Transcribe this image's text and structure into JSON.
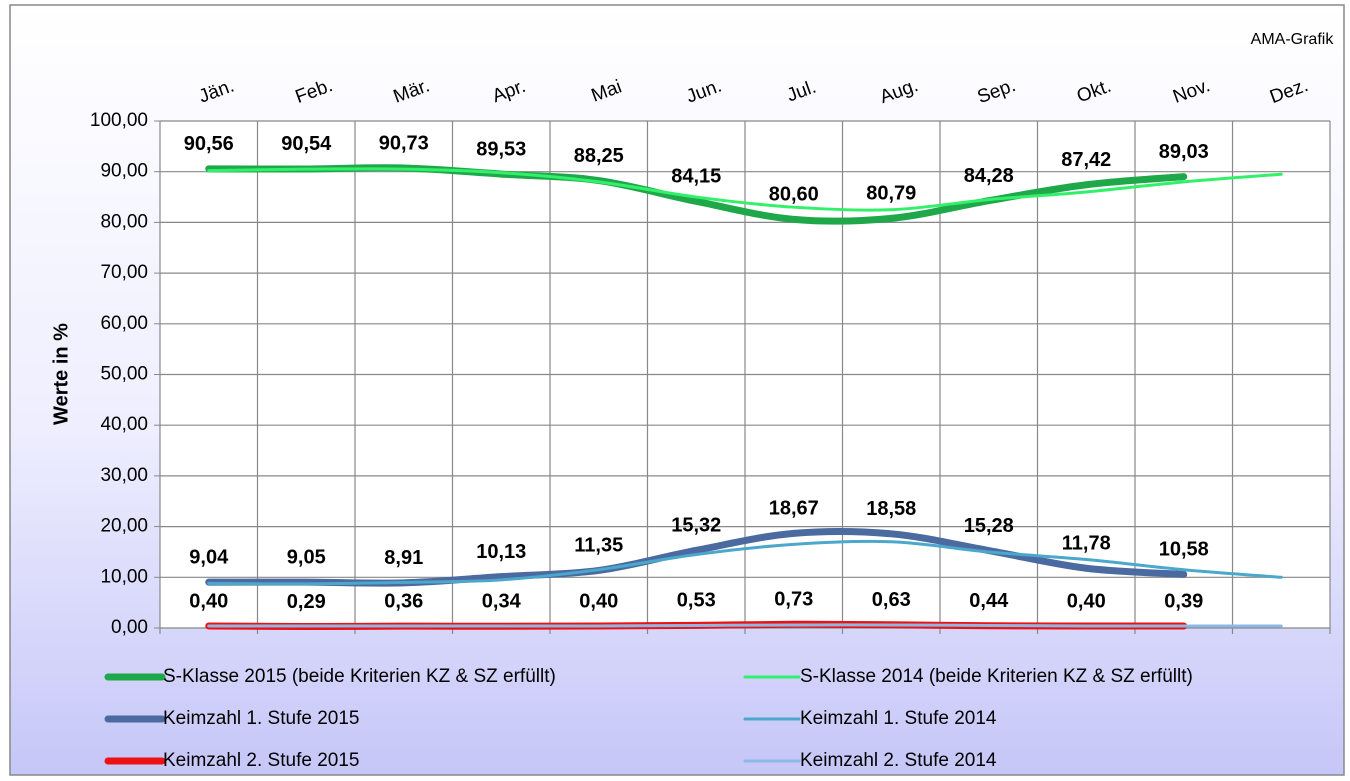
{
  "chart_data": {
    "type": "line",
    "annotation": "AMA-Grafik",
    "y_label": "Werte in %",
    "categories": [
      "Jän.",
      "Feb.",
      "Mär.",
      "Apr.",
      "Mai",
      "Jun.",
      "Jul.",
      "Aug.",
      "Sep.",
      "Okt.",
      "Nov.",
      "Dez."
    ],
    "ylim": [
      0,
      100
    ],
    "yticks": [
      {
        "value": 0,
        "label": "0,00"
      },
      {
        "value": 10,
        "label": "10,00"
      },
      {
        "value": 20,
        "label": "20,00"
      },
      {
        "value": 30,
        "label": "30,00"
      },
      {
        "value": 40,
        "label": "40,00"
      },
      {
        "value": 50,
        "label": "50,00"
      },
      {
        "value": 60,
        "label": "60,00"
      },
      {
        "value": 70,
        "label": "70,00"
      },
      {
        "value": 80,
        "label": "80,00"
      },
      {
        "value": 90,
        "label": "90,00"
      },
      {
        "value": 100,
        "label": "100,00"
      }
    ],
    "grid": true,
    "series": [
      {
        "name": "S-Klasse 2015 (beide Kriterien KZ & SZ erfüllt)",
        "color": "#1fa84a",
        "width": 7,
        "values": [
          90.56,
          90.54,
          90.73,
          89.53,
          88.25,
          84.15,
          80.6,
          80.79,
          84.28,
          87.42,
          89.03,
          null
        ],
        "value_labels": [
          "90,56",
          "90,54",
          "90,73",
          "89,53",
          "88,25",
          "84,15",
          "80,60",
          "80,79",
          "84,28",
          "87,42",
          "89,03",
          null
        ]
      },
      {
        "name": "S-Klasse 2014 (beide Kriterien KZ & SZ erfüllt)",
        "color": "#33f06a",
        "width": 3,
        "values": [
          90.2,
          90.5,
          90.5,
          89.8,
          88.0,
          85.0,
          83.0,
          82.5,
          84.5,
          86.0,
          88.0,
          89.5
        ]
      },
      {
        "name": "Keimzahl 1. Stufe 2015",
        "color": "#4a6aa0",
        "width": 7,
        "values": [
          9.04,
          9.05,
          8.91,
          10.13,
          11.35,
          15.32,
          18.67,
          18.58,
          15.28,
          11.78,
          10.58,
          null
        ],
        "value_labels": [
          "9,04",
          "9,05",
          "8,91",
          "10,13",
          "11,35",
          "15,32",
          "18,67",
          "18,58",
          "15,28",
          "11,78",
          "10,58",
          null
        ]
      },
      {
        "name": "Keimzahl 1. Stufe 2014",
        "color": "#4ba8cc",
        "width": 3,
        "values": [
          8.8,
          8.7,
          9.0,
          9.5,
          11.5,
          14.5,
          16.5,
          17.0,
          15.0,
          13.5,
          11.5,
          10.0
        ]
      },
      {
        "name": "Keimzahl 2. Stufe 2015",
        "color": "#ee1111",
        "width": 7,
        "values": [
          0.4,
          0.29,
          0.36,
          0.34,
          0.4,
          0.53,
          0.73,
          0.63,
          0.44,
          0.4,
          0.39,
          null
        ],
        "value_labels": [
          "0,40",
          "0,29",
          "0,36",
          "0,34",
          "0,40",
          "0,53",
          "0,73",
          "0,63",
          "0,44",
          "0,40",
          "0,39",
          null
        ]
      },
      {
        "name": "Keimzahl 2. Stufe 2014",
        "color": "#8db8e6",
        "width": 3,
        "values": [
          0.4,
          0.4,
          0.4,
          0.4,
          0.4,
          0.5,
          0.6,
          0.6,
          0.5,
          0.4,
          0.4,
          0.4
        ]
      }
    ]
  }
}
